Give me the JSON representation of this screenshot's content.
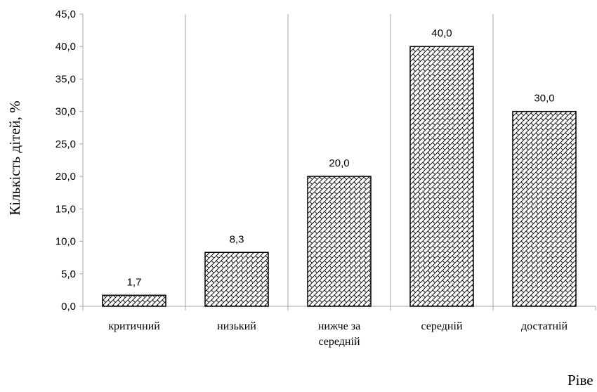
{
  "chart_data": {
    "type": "bar",
    "categories": [
      [
        "критичний"
      ],
      [
        "низький"
      ],
      [
        "нижче за",
        "середній"
      ],
      [
        "середній"
      ],
      [
        "достатній"
      ]
    ],
    "values": [
      1.7,
      8.3,
      20.0,
      40.0,
      30.0
    ],
    "data_labels": [
      "1,7",
      "8,3",
      "20,0",
      "40,0",
      "30,0"
    ],
    "y_ticks": [
      "0,0",
      "5,0",
      "10,0",
      "15,0",
      "20,0",
      "25,0",
      "30,0",
      "35,0",
      "40,0",
      "45,0"
    ],
    "ylim": [
      0,
      45
    ],
    "ylabel": "Кількість дітей, %",
    "xlabel": "Ріве",
    "grid": "vertical separators between categories",
    "bar_fill": "crosshatch pattern, black outline"
  }
}
